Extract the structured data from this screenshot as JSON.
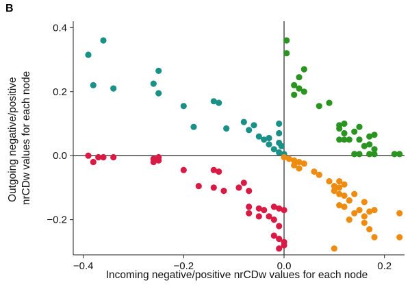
{
  "panel_label": "B",
  "chart_data": {
    "type": "scatter",
    "title": "",
    "xlabel": "Incoming negative/positive nrCDw values for each node",
    "ylabel_lines": [
      "Outgoing negative/positive",
      "nrCDw values for each node"
    ],
    "xlim": [
      -0.42,
      0.24
    ],
    "ylim": [
      -0.31,
      0.42
    ],
    "xticks": [
      -0.4,
      -0.2,
      0.0,
      0.2
    ],
    "xtick_labels": [
      "−0.4",
      "−0.2",
      "0.0",
      "0.2"
    ],
    "yticks": [
      -0.2,
      0.0,
      0.2,
      0.4
    ],
    "ytick_labels": [
      "−0.2",
      "0.0",
      "0.2",
      "0.4"
    ],
    "reference_lines": {
      "x": 0.0,
      "y": 0.0
    },
    "grid": false,
    "legend": "none",
    "series": [
      {
        "color": "#1a9087",
        "points": [
          [
            -0.39,
            0.315
          ],
          [
            -0.36,
            0.36
          ],
          [
            -0.38,
            0.22
          ],
          [
            -0.34,
            0.21
          ],
          [
            -0.25,
            0.265
          ],
          [
            -0.26,
            0.225
          ],
          [
            -0.25,
            0.195
          ],
          [
            -0.2,
            0.155
          ],
          [
            -0.14,
            0.17
          ],
          [
            -0.13,
            0.165
          ],
          [
            -0.18,
            0.09
          ],
          [
            -0.115,
            0.085
          ],
          [
            -0.08,
            0.105
          ],
          [
            -0.06,
            0.095
          ],
          [
            -0.07,
            0.08
          ],
          [
            -0.05,
            0.06
          ],
          [
            -0.04,
            0.05
          ],
          [
            -0.03,
            0.055
          ],
          [
            -0.01,
            0.1
          ],
          [
            -0.01,
            0.07
          ],
          [
            -0.03,
            0.035
          ],
          [
            -0.01,
            0.04
          ],
          [
            -0.02,
            0.02
          ],
          [
            -0.01,
            0.01
          ],
          [
            0.0,
            0.005
          ],
          [
            -0.005,
            0.03
          ]
        ]
      },
      {
        "color": "#2b9420",
        "points": [
          [
            0.005,
            0.36
          ],
          [
            0.005,
            0.32
          ],
          [
            0.04,
            0.27
          ],
          [
            0.03,
            0.245
          ],
          [
            0.02,
            0.22
          ],
          [
            0.03,
            0.21
          ],
          [
            0.04,
            0.2
          ],
          [
            0.02,
            0.19
          ],
          [
            0.07,
            0.155
          ],
          [
            0.09,
            0.165
          ],
          [
            0.11,
            0.095
          ],
          [
            0.12,
            0.1
          ],
          [
            0.11,
            0.085
          ],
          [
            0.12,
            0.07
          ],
          [
            0.15,
            0.09
          ],
          [
            0.14,
            0.075
          ],
          [
            0.17,
            0.06
          ],
          [
            0.18,
            0.065
          ],
          [
            0.11,
            0.05
          ],
          [
            0.12,
            0.05
          ],
          [
            0.13,
            0.05
          ],
          [
            0.15,
            0.05
          ],
          [
            0.16,
            0.03
          ],
          [
            0.17,
            0.035
          ],
          [
            0.18,
            0.02
          ],
          [
            0.17,
            0.005
          ],
          [
            0.15,
            0.005
          ],
          [
            0.14,
            0.005
          ],
          [
            0.18,
            0.005
          ],
          [
            0.22,
            0.005
          ],
          [
            0.23,
            0.005
          ]
        ]
      },
      {
        "color": "#d81b45",
        "points": [
          [
            -0.39,
            0.0
          ],
          [
            -0.38,
            -0.02
          ],
          [
            -0.37,
            -0.005
          ],
          [
            -0.36,
            -0.005
          ],
          [
            -0.34,
            -0.005
          ],
          [
            -0.26,
            -0.02
          ],
          [
            -0.25,
            -0.015
          ],
          [
            -0.26,
            -0.01
          ],
          [
            -0.25,
            -0.005
          ],
          [
            -0.2,
            -0.045
          ],
          [
            -0.14,
            -0.045
          ],
          [
            -0.13,
            -0.05
          ],
          [
            -0.17,
            -0.095
          ],
          [
            -0.14,
            -0.1
          ],
          [
            -0.12,
            -0.11
          ],
          [
            -0.09,
            -0.1
          ],
          [
            -0.08,
            -0.085
          ],
          [
            -0.07,
            -0.11
          ],
          [
            -0.07,
            -0.16
          ],
          [
            -0.05,
            -0.165
          ],
          [
            -0.04,
            -0.17
          ],
          [
            -0.02,
            -0.16
          ],
          [
            -0.01,
            -0.165
          ],
          [
            0.0,
            -0.17
          ],
          [
            -0.03,
            -0.19
          ],
          [
            -0.07,
            -0.18
          ],
          [
            -0.05,
            -0.19
          ],
          [
            -0.02,
            -0.2
          ],
          [
            -0.01,
            -0.22
          ],
          [
            -0.02,
            -0.25
          ],
          [
            -0.01,
            -0.26
          ],
          [
            0.0,
            -0.27
          ],
          [
            -0.01,
            -0.29
          ],
          [
            0.0,
            -0.28
          ]
        ]
      },
      {
        "color": "#ee8c12",
        "points": [
          [
            0.0,
            -0.005
          ],
          [
            0.01,
            -0.01
          ],
          [
            0.02,
            -0.015
          ],
          [
            0.03,
            -0.02
          ],
          [
            0.04,
            -0.025
          ],
          [
            0.02,
            -0.03
          ],
          [
            0.03,
            -0.04
          ],
          [
            0.06,
            -0.05
          ],
          [
            0.07,
            -0.06
          ],
          [
            0.09,
            -0.08
          ],
          [
            0.11,
            -0.08
          ],
          [
            0.12,
            -0.09
          ],
          [
            0.1,
            -0.095
          ],
          [
            0.11,
            -0.1
          ],
          [
            0.1,
            -0.11
          ],
          [
            0.11,
            -0.12
          ],
          [
            0.12,
            -0.125
          ],
          [
            0.14,
            -0.12
          ],
          [
            0.13,
            -0.14
          ],
          [
            0.16,
            -0.145
          ],
          [
            0.11,
            -0.155
          ],
          [
            0.12,
            -0.16
          ],
          [
            0.14,
            -0.18
          ],
          [
            0.15,
            -0.17
          ],
          [
            0.17,
            -0.175
          ],
          [
            0.16,
            -0.19
          ],
          [
            0.18,
            -0.17
          ],
          [
            0.16,
            -0.21
          ],
          [
            0.17,
            -0.23
          ],
          [
            0.13,
            -0.2
          ],
          [
            0.18,
            -0.255
          ],
          [
            0.23,
            -0.18
          ],
          [
            0.23,
            -0.255
          ],
          [
            0.1,
            -0.29
          ]
        ]
      }
    ]
  }
}
